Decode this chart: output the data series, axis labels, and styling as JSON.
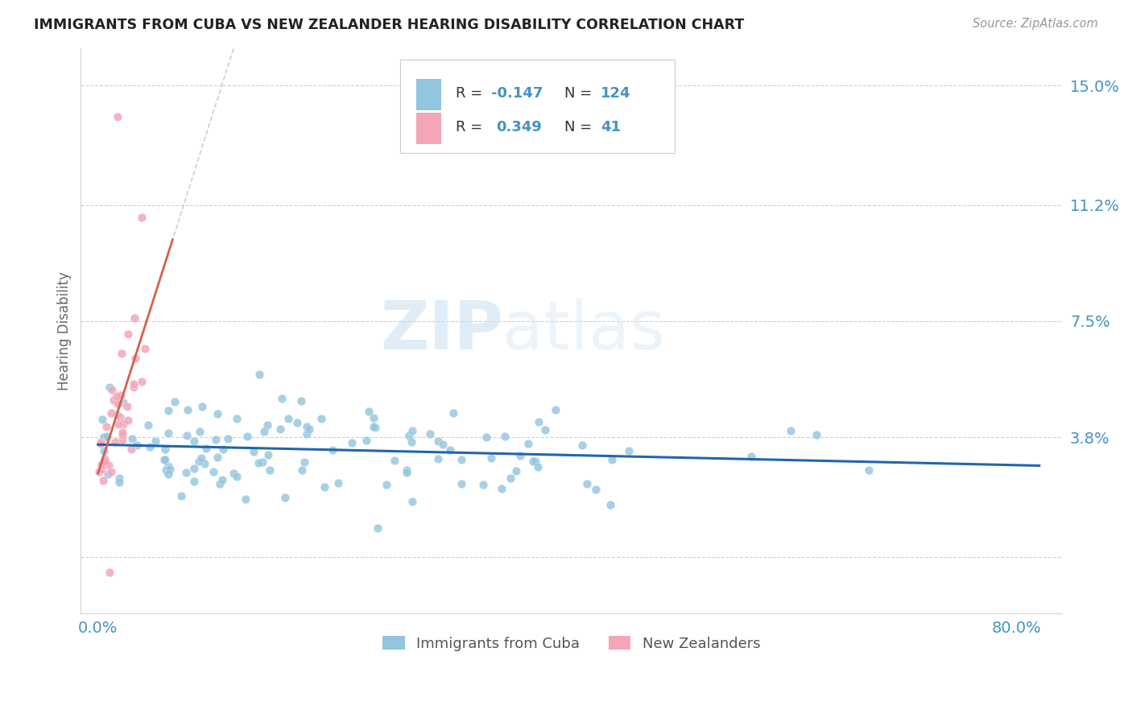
{
  "title": "IMMIGRANTS FROM CUBA VS NEW ZEALANDER HEARING DISABILITY CORRELATION CHART",
  "source": "Source: ZipAtlas.com",
  "ylabel": "Hearing Disability",
  "watermark_zip": "ZIP",
  "watermark_atlas": "atlas",
  "legend_R1": "-0.147",
  "legend_N1": "124",
  "legend_R2": "0.349",
  "legend_N2": "41",
  "blue_color": "#92c5de",
  "pink_color": "#f4a6b8",
  "blue_line_color": "#2166ac",
  "pink_line_color": "#d6604d",
  "title_color": "#222222",
  "axis_label_color": "#4393c3",
  "grid_color": "#d0d0d0",
  "ytick_vals": [
    0.0,
    0.038,
    0.075,
    0.112,
    0.15
  ],
  "ytick_labels": [
    "",
    "3.8%",
    "7.5%",
    "11.2%",
    "15.0%"
  ],
  "xmin": -0.015,
  "xmax": 0.84,
  "ymin": -0.018,
  "ymax": 0.162
}
